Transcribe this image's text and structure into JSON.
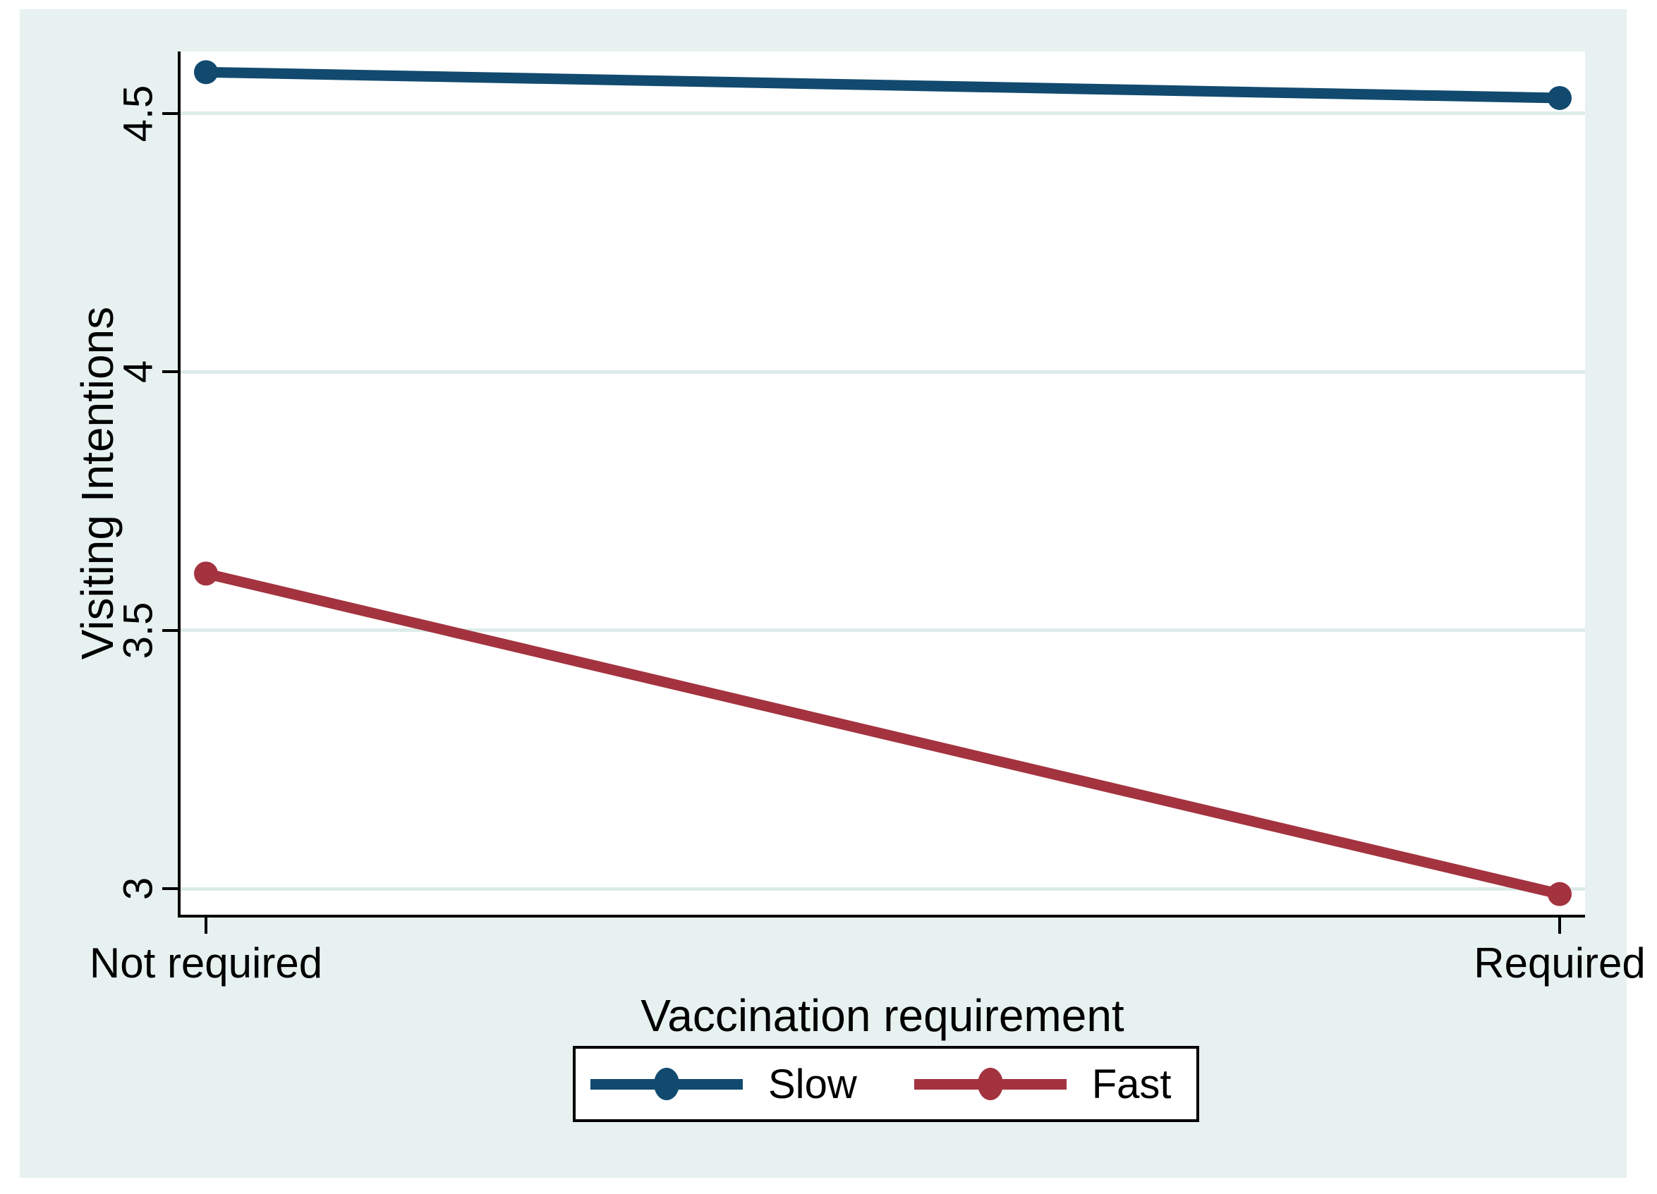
{
  "figure": {
    "background_color": "#E7F1F0",
    "plot_background_color": "#FFFFFF",
    "gridline_color": "#DDECEA",
    "axis_color": "#000000",
    "text_color": "#000000"
  },
  "chart_data": {
    "type": "line",
    "title": "",
    "xlabel": "Vaccination requirement",
    "ylabel": "Visiting Intentions",
    "categories": [
      "Not required",
      "Required"
    ],
    "yticks": [
      3,
      3.5,
      4,
      4.5
    ],
    "ylim": [
      2.95,
      4.62
    ],
    "grid": true,
    "legend_position": "bottom-center",
    "series": [
      {
        "name": "Slow",
        "color": "#114A6E",
        "values": [
          4.58,
          4.53
        ]
      },
      {
        "name": "Fast",
        "color": "#A3333F",
        "values": [
          3.61,
          2.99
        ]
      }
    ]
  }
}
